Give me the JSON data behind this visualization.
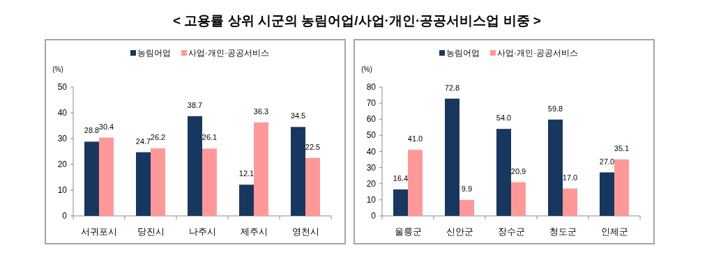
{
  "chart_data": [
    {
      "type": "bar",
      "title": "< 고용률 상위 시군의 농림어업/사업·개인·공공서비스업 비중 >",
      "ylabel": "(%)",
      "categories": [
        "서귀포시",
        "당진시",
        "나주시",
        "제주시",
        "영천시"
      ],
      "series": [
        {
          "name": "농림어업",
          "color": "#17375e",
          "values": [
            28.8,
            24.7,
            38.7,
            12.1,
            34.5
          ]
        },
        {
          "name": "사업·개인·공공서비스",
          "color": "#ff9999",
          "values": [
            30.4,
            26.2,
            26.1,
            36.3,
            22.5
          ]
        }
      ],
      "ylim": [
        0,
        50
      ],
      "yticks": [
        0,
        10,
        20,
        30,
        40,
        50
      ],
      "data_labels": true,
      "legend": "top",
      "grid": false
    },
    {
      "type": "bar",
      "ylabel": "(%)",
      "categories": [
        "울릉군",
        "신안군",
        "장수군",
        "청도군",
        "인제군"
      ],
      "series": [
        {
          "name": "농림어업",
          "color": "#17375e",
          "values": [
            16.4,
            72.8,
            54.0,
            59.8,
            27.0
          ],
          "value_labels": [
            "16.4",
            "72.8",
            "54.0",
            "59.8",
            "27.0"
          ]
        },
        {
          "name": "사업·개인·공공서비스",
          "color": "#ff9999",
          "values": [
            41.0,
            9.9,
            20.9,
            17.0,
            35.1
          ],
          "value_labels": [
            "41.0",
            "9.9",
            "20.9",
            "17.0",
            "35.1"
          ]
        }
      ],
      "ylim": [
        0,
        80
      ],
      "yticks": [
        0,
        10,
        20,
        30,
        40,
        50,
        60,
        70,
        80
      ],
      "legend": "top",
      "grid": false
    }
  ]
}
